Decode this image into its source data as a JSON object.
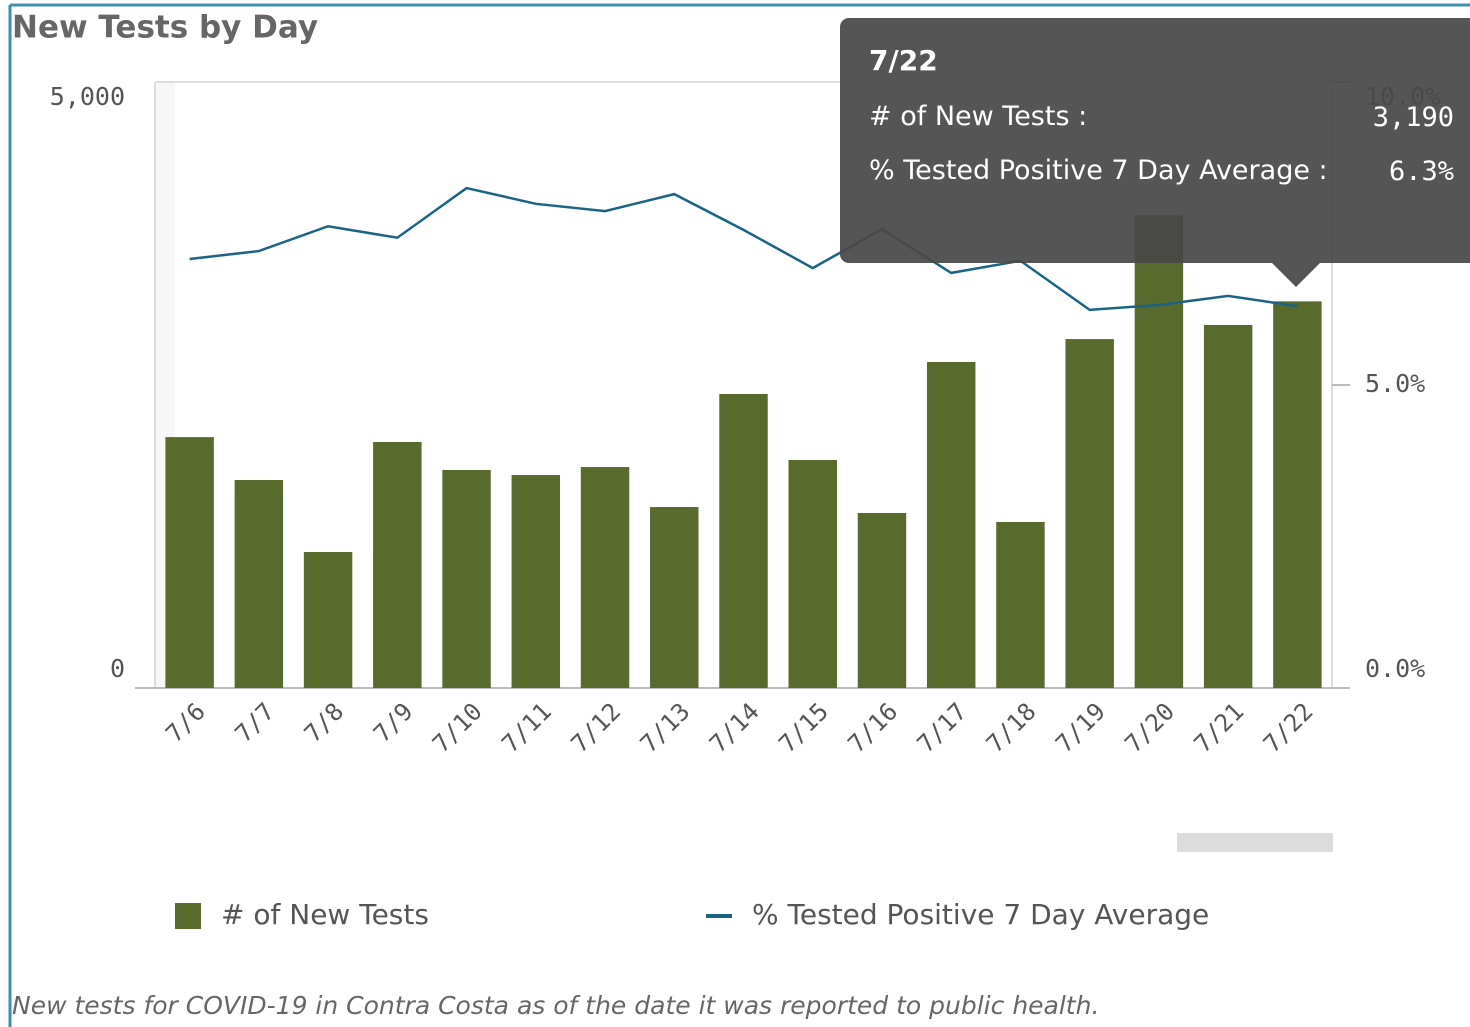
{
  "chart_data": {
    "type": "bar",
    "title": "New Tests by Day",
    "caption": "New tests for COVID-19 in Contra Costa as of the date it was reported to public health.",
    "categories": [
      "7/6",
      "7/7",
      "7/8",
      "7/9",
      "7/10",
      "7/11",
      "7/12",
      "7/13",
      "7/14",
      "7/15",
      "7/16",
      "7/17",
      "7/18",
      "7/19",
      "7/20",
      "7/21",
      "7/22"
    ],
    "series": [
      {
        "name": "# of New Tests",
        "color": "#596a2d",
        "type": "bar",
        "values": [
          2070,
          1716,
          1122,
          2030,
          1799,
          1757,
          1823,
          1493,
          2426,
          1881,
          1444,
          2690,
          1370,
          2879,
          3900,
          2995,
          3190
        ]
      },
      {
        "name": "% Tested Positive 7 Day Average",
        "color": "#1b6384",
        "type": "line",
        "axis": "y2",
        "values": [
          7.08,
          7.21,
          7.62,
          7.43,
          8.25,
          7.99,
          7.87,
          8.15,
          7.56,
          6.93,
          7.57,
          6.85,
          7.05,
          6.24,
          6.32,
          6.47,
          6.3
        ]
      }
    ],
    "ylim": [
      0,
      5000
    ],
    "yticks": [
      0,
      {
        "value": 5000,
        "label": "5,000"
      }
    ],
    "y2lim": [
      0,
      10
    ],
    "y2ticks": [
      {
        "value": 0,
        "label": "0.0%"
      },
      {
        "value": 5,
        "label": "5.0%"
      },
      {
        "value": 10,
        "label": "10.0%"
      }
    ],
    "tooltip": {
      "title": "7/22",
      "rows": [
        {
          "label": "# of New Tests :",
          "value": "3,190"
        },
        {
          "label": "% Tested Positive 7 Day Average :",
          "value": "6.3%"
        }
      ]
    }
  }
}
